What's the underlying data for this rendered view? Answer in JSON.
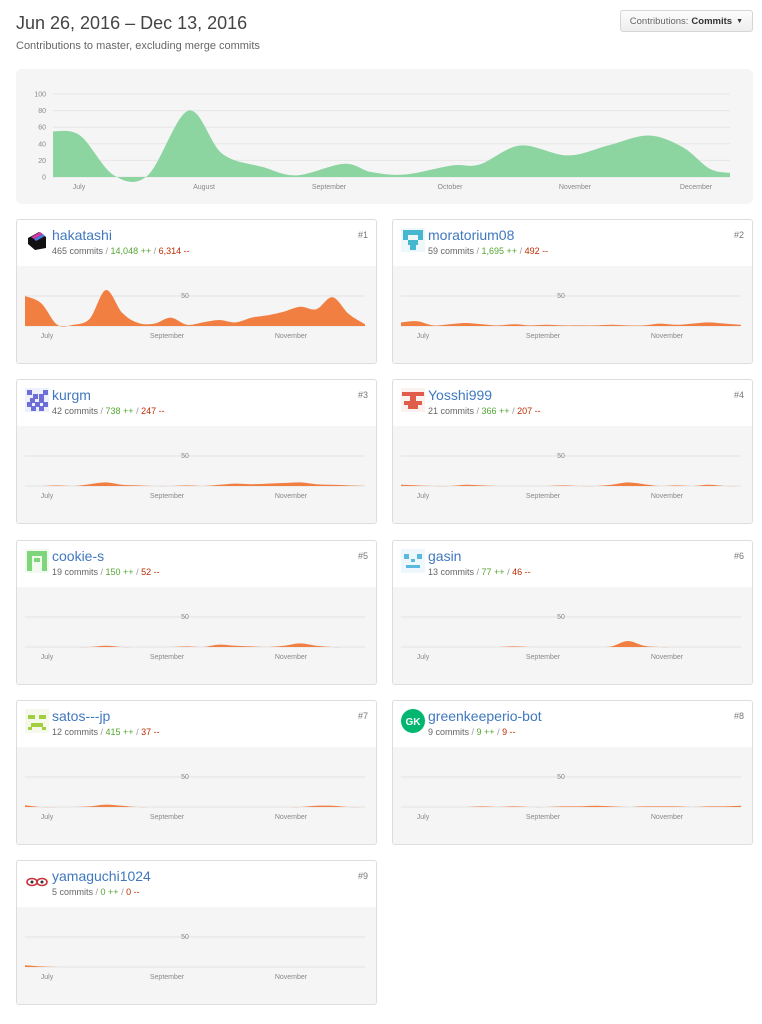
{
  "header": {
    "date_range": "Jun 26, 2016 – Dec 13, 2016",
    "subtitle": "Contributions to master, excluding merge commits",
    "select_label": "Contributions:",
    "select_value": "Commits"
  },
  "colors": {
    "overview_fill": "#8cd5a1",
    "contributor_fill": "#f17f42",
    "link": "#4078c0",
    "additions": "#55a532",
    "deletions": "#bd2c00"
  },
  "chart_data": [
    {
      "type": "area",
      "x": [
        0,
        0.04,
        0.09,
        0.14,
        0.2,
        0.25,
        0.31,
        0.36,
        0.43,
        0.47,
        0.52,
        0.59,
        0.63,
        0.69,
        0.76,
        0.82,
        0.88,
        0.93,
        0.97,
        1.0
      ],
      "values": [
        55,
        50,
        2,
        2,
        80,
        28,
        12,
        2,
        16,
        6,
        3,
        14,
        15,
        38,
        26,
        38,
        50,
        36,
        10,
        5
      ],
      "yticks": [
        "100",
        "80",
        "60",
        "40",
        "20",
        "0"
      ],
      "xticks": [
        "July",
        "August",
        "September",
        "October",
        "November",
        "December"
      ],
      "ylim": [
        0,
        100
      ]
    }
  ],
  "contributors": [
    {
      "name": "hakatashi",
      "commits": "465 commits",
      "additions": "14,048 ++",
      "deletions": "6,314 --",
      "rank": "#1",
      "avatar": "hakatashi-avatar",
      "values": [
        50,
        38,
        2,
        2,
        12,
        60,
        22,
        5,
        4,
        14,
        2,
        6,
        10,
        6,
        14,
        18,
        24,
        32,
        28,
        48,
        20,
        3
      ]
    },
    {
      "name": "moratorium08",
      "commits": "59 commits",
      "additions": "1,695 ++",
      "deletions": "492 --",
      "rank": "#2",
      "avatar": "moratorium08-avatar",
      "values": [
        6,
        8,
        1,
        3,
        5,
        3,
        1,
        3,
        1,
        2,
        1,
        1,
        1,
        2,
        1,
        1,
        4,
        2,
        4,
        6,
        4,
        2
      ]
    },
    {
      "name": "kurgm",
      "commits": "42 commits",
      "additions": "738 ++",
      "deletions": "247 --",
      "rank": "#3",
      "avatar": "kurgm-avatar",
      "values": [
        0,
        0,
        1,
        0,
        3,
        6,
        2,
        1,
        0,
        0,
        1,
        0,
        2,
        4,
        3,
        4,
        5,
        6,
        3,
        2,
        1,
        0
      ]
    },
    {
      "name": "Yosshi999",
      "commits": "21 commits",
      "additions": "366 ++",
      "deletions": "207 --",
      "rank": "#4",
      "avatar": "yosshi999-avatar",
      "values": [
        2,
        1,
        0,
        0,
        2,
        1,
        0,
        0,
        0,
        0,
        1,
        0,
        0,
        2,
        6,
        3,
        0,
        1,
        0,
        2,
        0,
        0
      ]
    },
    {
      "name": "cookie-s",
      "commits": "19 commits",
      "additions": "150 ++",
      "deletions": "52 --",
      "rank": "#5",
      "avatar": "cookie-s-avatar",
      "values": [
        0,
        0,
        0,
        0,
        0,
        2,
        0,
        0,
        0,
        0,
        1,
        0,
        4,
        2,
        1,
        0,
        2,
        6,
        2,
        0,
        0,
        0
      ]
    },
    {
      "name": "gasin",
      "commits": "13 commits",
      "additions": "77 ++",
      "deletions": "46 --",
      "rank": "#6",
      "avatar": "gasin-avatar",
      "values": [
        0,
        0,
        0,
        0,
        0,
        0,
        0,
        1,
        0,
        0,
        0,
        0,
        0,
        1,
        10,
        2,
        0,
        0,
        0,
        0,
        0,
        0
      ]
    },
    {
      "name": "satos---jp",
      "commits": "12 commits",
      "additions": "415 ++",
      "deletions": "37 --",
      "rank": "#7",
      "avatar": "satos-avatar",
      "values": [
        3,
        0,
        0,
        0,
        1,
        4,
        2,
        0,
        0,
        0,
        0,
        0,
        0,
        0,
        0,
        0,
        0,
        0,
        2,
        2,
        0,
        0
      ]
    },
    {
      "name": "greenkeeperio-bot",
      "commits": "9 commits",
      "additions": "9 ++",
      "deletions": "9 --",
      "rank": "#8",
      "avatar": "greenkeeper-avatar",
      "avatar_text": "GK",
      "values": [
        0,
        0,
        0,
        0,
        0,
        1,
        0,
        1,
        0,
        0,
        1,
        1,
        2,
        1,
        0,
        1,
        1,
        1,
        0,
        1,
        1,
        2
      ]
    },
    {
      "name": "yamaguchi1024",
      "commits": "5 commits",
      "additions": "0 ++",
      "deletions": "0 --",
      "rank": "#9",
      "avatar": "yamaguchi1024-avatar",
      "values": [
        3,
        1,
        0,
        0,
        0,
        0,
        0,
        0,
        0,
        0,
        0,
        0,
        0,
        0,
        0,
        0,
        0,
        0,
        0,
        0,
        0,
        0
      ]
    }
  ],
  "card_axis": {
    "ytick": "50",
    "xticks": [
      "July",
      "September",
      "November"
    ],
    "ylim": [
      0,
      100
    ]
  }
}
